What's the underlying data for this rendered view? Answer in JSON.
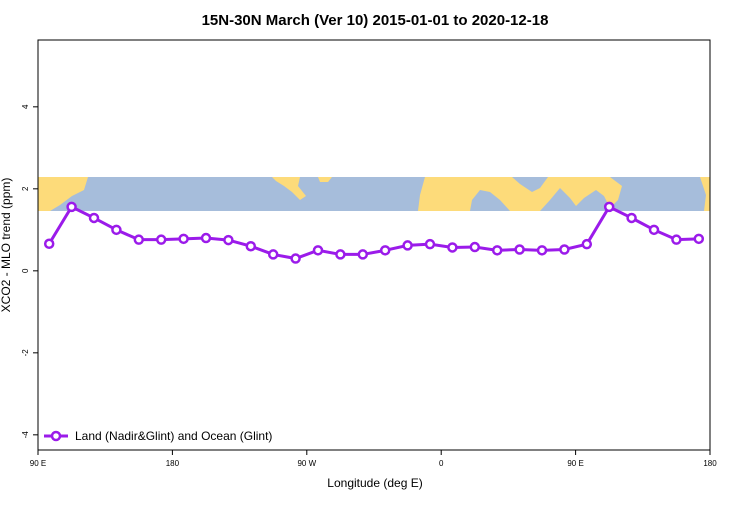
{
  "chart_data": {
    "type": "line",
    "title": "15N-30N March (Ver 10)   2015-01-01 to 2020-12-18",
    "x_label": "Longitude (deg E)",
    "y_label": "XCO2 - MLO trend (ppm)",
    "x": [
      97.5,
      112.5,
      127.5,
      142.5,
      157.5,
      172.5,
      187.5,
      202.5,
      217.5,
      232.5,
      247.5,
      262.5,
      277.5,
      292.5,
      307.5,
      322.5,
      337.5,
      352.5,
      367.5,
      382.5,
      397.5,
      412.5,
      427.5,
      442.5,
      457.5,
      472.5,
      487.5,
      502.5,
      517.5,
      532.5
    ],
    "series": [
      {
        "name": "Land (Nadir&Glint) and Ocean (Glint)",
        "color": "#9b1bea",
        "values": [
          0.66,
          1.56,
          1.29,
          1.0,
          0.76,
          0.76,
          0.78,
          0.8,
          0.75,
          0.6,
          0.4,
          0.3,
          0.5,
          0.4,
          0.4,
          0.5,
          0.62,
          0.65,
          0.57,
          0.58,
          0.5,
          0.52,
          0.5,
          0.52,
          0.65,
          1.56,
          1.29,
          1.0,
          0.76,
          0.78
        ]
      }
    ],
    "xlim": [
      90,
      540
    ],
    "ylim": [
      -4.37,
      5.63
    ],
    "xticks": [
      {
        "value": 90,
        "label": "90 E"
      },
      180,
      {
        "value": 270,
        "label": "90 W"
      },
      {
        "value": 360,
        "label": "0"
      },
      {
        "value": 450,
        "label": "90 E"
      },
      {
        "value": 540,
        "label": "180"
      }
    ],
    "yticks": [
      4,
      2,
      0,
      -2,
      -4
    ],
    "legend": "bottom-left"
  }
}
